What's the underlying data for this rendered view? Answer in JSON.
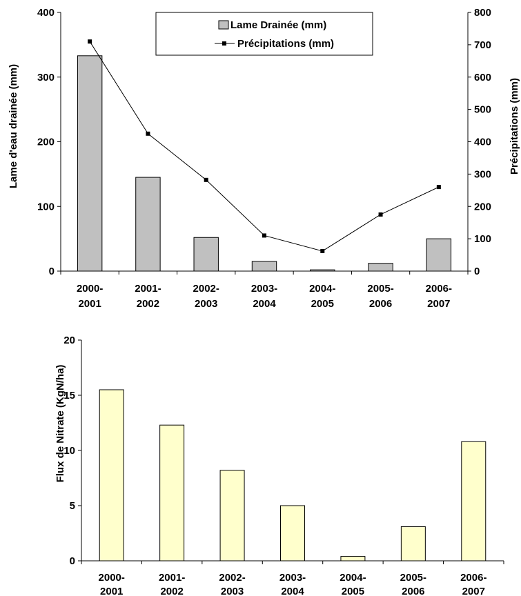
{
  "chart_data": [
    {
      "type": "bar+line",
      "categories": [
        [
          "2000-",
          "2001"
        ],
        [
          "2001-",
          "2002"
        ],
        [
          "2002-",
          "2003"
        ],
        [
          "2003-",
          "2004"
        ],
        [
          "2004-",
          "2005"
        ],
        [
          "2005-",
          "2006"
        ],
        [
          "2006-",
          "2007"
        ]
      ],
      "series": [
        {
          "name": "Lame Drainée (mm)",
          "type": "bar",
          "axis": "left",
          "color": "#c0c0c0",
          "values": [
            333,
            145,
            52,
            15,
            2,
            12,
            50
          ]
        },
        {
          "name": "Précipitations (mm)",
          "type": "line",
          "axis": "right",
          "color": "#000000",
          "values": [
            710,
            425,
            282,
            110,
            62,
            175,
            260
          ]
        }
      ],
      "ylabel": "Lame d'eau drainée (mm)",
      "ylabel_right": "Précipitations (mm)",
      "ylim": [
        0,
        400
      ],
      "yticks": [
        "0",
        "100",
        "200",
        "300",
        "400"
      ],
      "ylim_right": [
        0,
        800
      ],
      "yticks_right": [
        "0",
        "100",
        "200",
        "300",
        "400",
        "500",
        "600",
        "700",
        "800"
      ],
      "legend": "top-center",
      "grid": false
    },
    {
      "type": "bar",
      "categories": [
        [
          "2000-",
          "2001"
        ],
        [
          "2001-",
          "2002"
        ],
        [
          "2002-",
          "2003"
        ],
        [
          "2003-",
          "2004"
        ],
        [
          "2004-",
          "2005"
        ],
        [
          "2005-",
          "2006"
        ],
        [
          "2006-",
          "2007"
        ]
      ],
      "series": [
        {
          "type": "bar",
          "color": "#ffffcc",
          "values": [
            15.5,
            12.3,
            8.2,
            5.0,
            0.4,
            3.1,
            10.8
          ]
        }
      ],
      "ylabel": "Flux de Nitrate (KgN/ha)",
      "ylim": [
        0,
        20
      ],
      "yticks": [
        "0",
        "5",
        "10",
        "15",
        "20"
      ],
      "grid": false
    }
  ]
}
